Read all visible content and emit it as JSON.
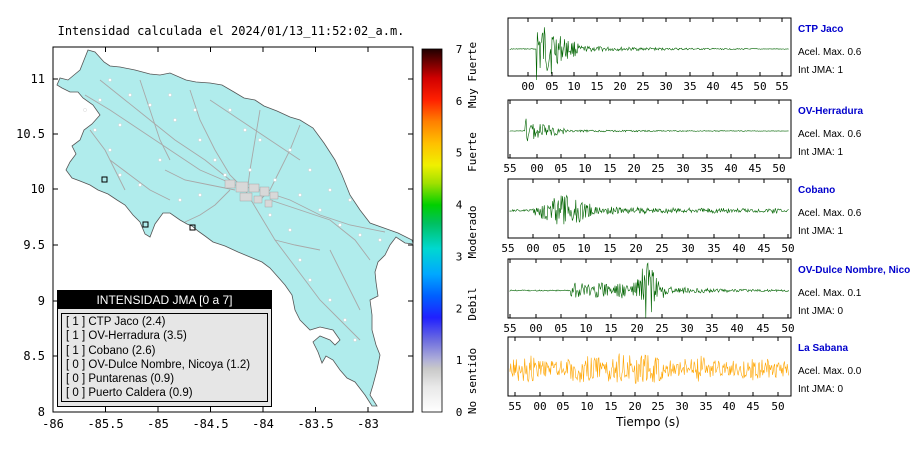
{
  "map": {
    "title": "Intensidad calculada el 2024/01/13_11:52:02_a.m.",
    "x_ticks": [
      "-86",
      "-85.5",
      "-85",
      "-84.5",
      "-84",
      "-83.5",
      "-83"
    ],
    "y_ticks": [
      "11",
      "10.5",
      "10",
      "9.5",
      "9",
      "8.5",
      "8"
    ],
    "colors": {
      "land": "#b0ecec",
      "sea": "#ffffff",
      "roads": "#a8a8a8"
    }
  },
  "colorbar": {
    "ticks": [
      "7",
      "6",
      "5",
      "4",
      "3",
      "2",
      "1",
      "0"
    ],
    "categories": [
      "Muy Fuerte",
      "Fuerte",
      "Moderado",
      "Debil",
      "No sentido"
    ]
  },
  "legend": {
    "title": "INTENSIDAD JMA [0 a 7]",
    "items": [
      {
        "level": "[ 1 ]",
        "name": "CTP Jaco (2.4)"
      },
      {
        "level": "[ 1 ]",
        "name": "OV-Herradura (3.5)"
      },
      {
        "level": "[ 1 ]",
        "name": "Cobano (2.6)"
      },
      {
        "level": "[ 0 ]",
        "name": "OV-Dulce Nombre, Nicoya (1.2)"
      },
      {
        "level": "[ 0 ]",
        "name": "Puntarenas (0.9)"
      },
      {
        "level": "[ 0 ]",
        "name": "Puerto Caldera (0.9)"
      }
    ]
  },
  "seismograms": [
    {
      "station": "CTP Jaco",
      "acel": "Acel. Max. 0.6",
      "int": "Int JMA: 1",
      "color": "#006400",
      "ticks": [
        "00",
        "05",
        "10",
        "15",
        "20",
        "25",
        "30",
        "35",
        "40",
        "45",
        "50",
        "55"
      ]
    },
    {
      "station": "OV-Herradura",
      "acel": "Acel. Max. 0.6",
      "int": "Int JMA: 1",
      "color": "#006400",
      "ticks": [
        "55",
        "00",
        "05",
        "10",
        "15",
        "20",
        "25",
        "30",
        "35",
        "40",
        "45",
        "50"
      ]
    },
    {
      "station": "Cobano",
      "acel": "Acel. Max. 0.6",
      "int": "Int JMA: 1",
      "color": "#006400",
      "ticks": [
        "55",
        "00",
        "05",
        "10",
        "15",
        "20",
        "25",
        "30",
        "35",
        "40",
        "45",
        "50"
      ]
    },
    {
      "station": "OV-Dulce Nombre, Nicoya",
      "acel": "Acel. Max. 0.1",
      "int": "Int JMA: 0",
      "color": "#006400",
      "ticks": [
        "55",
        "00",
        "05",
        "10",
        "15",
        "20",
        "25",
        "30",
        "35",
        "40",
        "45",
        "50"
      ]
    },
    {
      "station": "La Sabana",
      "acel": "Acel. Max. 0.0",
      "int": "Int JMA: 0",
      "color": "#ffa500",
      "ticks": [
        "55",
        "00",
        "05",
        "10",
        "15",
        "20",
        "25",
        "30",
        "35",
        "40",
        "45",
        "50"
      ]
    }
  ],
  "time_axis_label": "Tiempo (s)",
  "chart_data": {
    "type": "line",
    "title": "Intensidad calculada el 2024/01/13_11:52:02_a.m.",
    "xlabel": "Tiempo (s)",
    "series": [
      {
        "name": "CTP Jaco",
        "acel_max": 0.6,
        "int_jma": 1
      },
      {
        "name": "OV-Herradura",
        "acel_max": 0.6,
        "int_jma": 1
      },
      {
        "name": "Cobano",
        "acel_max": 0.6,
        "int_jma": 1
      },
      {
        "name": "OV-Dulce Nombre, Nicoya",
        "acel_max": 0.1,
        "int_jma": 0
      },
      {
        "name": "La Sabana",
        "acel_max": 0.0,
        "int_jma": 0
      }
    ],
    "map_xlim": [
      -86,
      -82.6
    ],
    "map_ylim": [
      8,
      11.3
    ],
    "colorbar_range": [
      0,
      7
    ]
  }
}
